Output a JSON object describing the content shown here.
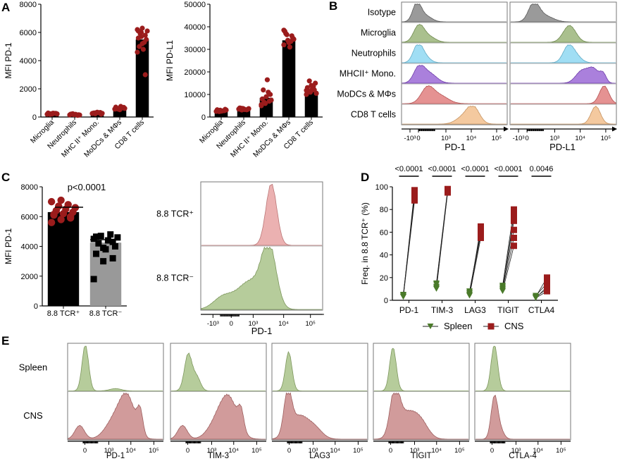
{
  "panels": {
    "A": "A",
    "B": "B",
    "C": "C",
    "D": "D",
    "E": "E"
  },
  "chart_data": [
    {
      "id": "A1",
      "type": "bar",
      "ylabel": "MFI PD-1",
      "ylim": [
        0,
        8000
      ],
      "yticks": [
        0,
        2000,
        4000,
        6000,
        8000
      ],
      "categories": [
        "Microglia",
        "Neutrophils",
        "MHC II⁺ Mono.",
        "MoDCs & MΦs",
        "CD8 T cells"
      ],
      "values": [
        250,
        180,
        280,
        620,
        5500
      ],
      "points": [
        [
          200,
          230,
          260,
          280,
          210,
          250,
          240,
          270,
          220,
          190
        ],
        [
          150,
          170,
          120,
          200,
          180,
          160,
          210,
          190,
          140,
          230
        ],
        [
          250,
          300,
          320,
          270,
          340,
          200,
          290,
          310,
          260,
          230
        ],
        [
          560,
          600,
          640,
          700,
          520,
          680,
          590,
          750,
          610,
          570
        ],
        [
          6200,
          6000,
          5800,
          5600,
          6300,
          5500,
          5000,
          4800,
          6100,
          5900,
          5300,
          4600,
          5700,
          3000,
          6100,
          5200
        ]
      ],
      "bar_color": "#000000",
      "point_color": "#9b1c1c"
    },
    {
      "id": "A2",
      "type": "bar",
      "ylabel": "MFI PD-L1",
      "ylim": [
        0,
        50000
      ],
      "yticks": [
        0,
        10000,
        20000,
        30000,
        40000,
        50000
      ],
      "categories": [
        "Microglia",
        "Neutrophils",
        "MHC II⁺ Mono.",
        "MoDCs & MΦs",
        "CD8 T cells"
      ],
      "values": [
        3000,
        3500,
        8500,
        34000,
        11500
      ],
      "points": [
        [
          2500,
          3000,
          2800,
          3200,
          2600,
          3400,
          2900,
          2700,
          3100,
          2400
        ],
        [
          3500,
          3800,
          3200,
          4000,
          3600,
          3400,
          3900,
          3300,
          3700,
          3100
        ],
        [
          5000,
          6000,
          7000,
          8000,
          9000,
          10000,
          12000,
          16500,
          7500,
          6500,
          11000,
          5500
        ],
        [
          32000,
          34000,
          36000,
          38000,
          33000,
          35000,
          37000,
          31000,
          34500,
          36500,
          33500,
          38500
        ],
        [
          10000,
          11000,
          12000,
          13000,
          14000,
          15000,
          11500,
          12500,
          10500,
          16000,
          13500,
          11800
        ]
      ],
      "bar_color": "#000000",
      "point_color": "#9b1c1c"
    },
    {
      "id": "B",
      "type": "histogram",
      "row_labels": [
        "Isotype",
        "Microglia",
        "Neutrophils",
        "MHCII⁺ Mono.",
        "MoDCs & MΦs",
        "CD8 T cells"
      ],
      "row_colors": [
        "#888888",
        "#9bb57a",
        "#8fd8f2",
        "#9b6ad6",
        "#e07f7f",
        "#f2c08e"
      ],
      "xlabels": [
        "PD-1",
        "PD-L1"
      ],
      "xticks": [
        "-10³",
        "0",
        "10³",
        "10⁴",
        "10⁵"
      ]
    },
    {
      "id": "C1",
      "type": "bar",
      "ylabel": "MFI PD-1",
      "ylim": [
        0,
        8000
      ],
      "yticks": [
        0,
        2000,
        4000,
        6000,
        8000
      ],
      "categories": [
        "8.8 TCR⁺",
        "8.8 TCR⁻"
      ],
      "values": [
        6300,
        4250
      ],
      "points": [
        [
          5600,
          5800,
          6000,
          6100,
          6200,
          6300,
          6400,
          6500,
          6600,
          6700,
          6800,
          7000,
          7100,
          5900,
          6150
        ],
        [
          1800,
          3000,
          3200,
          3500,
          3800,
          4000,
          4200,
          4400,
          4600,
          4700,
          4800,
          4500,
          3900,
          4300,
          4650
        ]
      ],
      "bar_colors": [
        "#000000",
        "#999999"
      ],
      "annotation": "p<0.0001"
    },
    {
      "id": "C2",
      "type": "histogram",
      "row_labels": [
        "8.8 TCR⁺",
        "8.8 TCR⁻"
      ],
      "row_colors": [
        "#e8a3a3",
        "#a9c389"
      ],
      "xlabel": "PD-1",
      "xticks": [
        "-10³",
        "0",
        "10³",
        "10⁴",
        "10⁵"
      ]
    },
    {
      "id": "D",
      "type": "paired",
      "ylabel": "Freq. in 8.8 TCR⁺ (%)",
      "ylim": [
        0,
        100
      ],
      "yticks": [
        0,
        20,
        40,
        60,
        80,
        100
      ],
      "categories": [
        "PD-1",
        "TIM-3",
        "LAG3",
        "TIGIT",
        "CTLA4"
      ],
      "pvalues": [
        "<0.0001",
        "<0.0001",
        "<0.0001",
        "<0.0001",
        "0.0046"
      ],
      "series": [
        {
          "name": "Spleen",
          "color": "#4a7a2a",
          "values": [
            [
              3,
              4,
              5,
              3,
              4
            ],
            [
              10,
              12,
              14,
              15,
              11
            ],
            [
              4,
              6,
              7,
              5,
              8
            ],
            [
              8,
              10,
              12,
              11,
              9,
              13
            ],
            [
              2,
              3,
              4,
              3,
              2
            ]
          ]
        },
        {
          "name": "CNS",
          "color": "#9b1c1c",
          "values": [
            [
              88,
              90,
              93,
              95,
              97
            ],
            [
              95,
              96,
              97,
              98,
              96
            ],
            [
              55,
              58,
              62,
              65,
              60
            ],
            [
              48,
              55,
              62,
              70,
              75,
              80
            ],
            [
              8,
              10,
              15,
              20,
              12
            ]
          ]
        }
      ]
    },
    {
      "id": "E",
      "type": "histogram",
      "row_labels": [
        "Spleen",
        "CNS"
      ],
      "row_colors": [
        "#a9c389",
        "#c98a8a"
      ],
      "markers": [
        "PD-1",
        "TIM-3",
        "LAG3",
        "TIGIT",
        "CTLA-4"
      ],
      "xticks": [
        "0",
        "10³",
        "10⁴",
        "10⁵"
      ]
    }
  ]
}
